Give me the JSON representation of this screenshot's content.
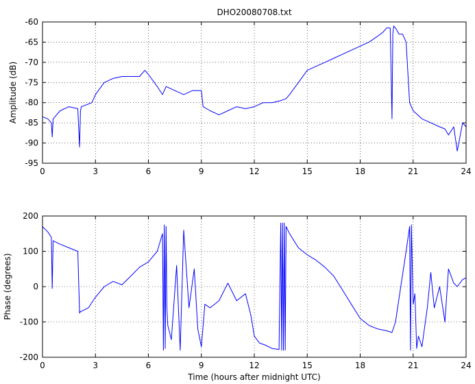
{
  "chart_data": [
    {
      "type": "line",
      "title": "DHO20080708.txt",
      "xlabel": "",
      "ylabel": "Amplitude (dB)",
      "xlim": [
        0,
        24
      ],
      "ylim": [
        -95,
        -60
      ],
      "xticks": [
        "0",
        "3",
        "6",
        "9",
        "12",
        "15",
        "18",
        "21",
        "24"
      ],
      "yticks": [
        "-95",
        "-90",
        "-85",
        "-80",
        "-75",
        "-70",
        "-65",
        "-60"
      ],
      "grid": "dotted",
      "color": "#0000ff",
      "series": [
        {
          "x": [
            0,
            0.3,
            0.5,
            0.55,
            0.6,
            1.0,
            1.5,
            2.0,
            2.1,
            2.15,
            2.2,
            2.5,
            2.8,
            3.0,
            3.5,
            4.0,
            4.5,
            5.0,
            5.5,
            5.8,
            6.0,
            6.5,
            6.8,
            7.0,
            7.5,
            8.0,
            8.5,
            9.0,
            9.1,
            9.5,
            10.0,
            10.5,
            11.0,
            11.5,
            12.0,
            12.5,
            13.0,
            13.5,
            13.8,
            14.0,
            14.5,
            15.0,
            15.5,
            16.0,
            16.5,
            17.0,
            17.5,
            18.0,
            18.5,
            19.0,
            19.3,
            19.5,
            19.7,
            19.8,
            19.85,
            19.9,
            20.0,
            20.2,
            20.4,
            20.6,
            20.8,
            21.0,
            21.5,
            22.0,
            22.5,
            22.8,
            23.0,
            23.3,
            23.5,
            23.8,
            24.0
          ],
          "y": [
            -83.5,
            -84,
            -85,
            -88.5,
            -84,
            -82,
            -81,
            -81.5,
            -91,
            -82,
            -81,
            -80.5,
            -80,
            -78,
            -75,
            -74,
            -73.5,
            -73.5,
            -73.5,
            -72,
            -73,
            -76,
            -78,
            -76,
            -77,
            -78,
            -77,
            -77,
            -81,
            -82,
            -83,
            -82,
            -81,
            -81.5,
            -81,
            -80,
            -80,
            -79.5,
            -79,
            -78,
            -75,
            -72,
            -71,
            -70,
            -69,
            -68,
            -67,
            -66,
            -65,
            -63.5,
            -62.5,
            -61.5,
            -61.5,
            -84,
            -63,
            -61,
            -61.5,
            -63,
            -63,
            -65,
            -80,
            -82,
            -84,
            -85,
            -86,
            -86.5,
            -88,
            -86,
            -92,
            -85,
            -86
          ]
        }
      ]
    },
    {
      "type": "line",
      "title": "",
      "xlabel": "Time (hours after midnight UTC)",
      "ylabel": "Phase (degrees)",
      "xlim": [
        0,
        24
      ],
      "ylim": [
        -200,
        200
      ],
      "xticks": [
        "0",
        "3",
        "6",
        "9",
        "12",
        "15",
        "18",
        "21",
        "24"
      ],
      "yticks": [
        "-200",
        "-100",
        "0",
        "100",
        "200"
      ],
      "grid": "dotted",
      "color": "#0000ff",
      "series": [
        {
          "x": [
            0,
            0.3,
            0.5,
            0.55,
            0.6,
            1.0,
            1.5,
            2.0,
            2.1,
            2.15,
            2.2,
            2.6,
            3.0,
            3.5,
            4.0,
            4.5,
            5.0,
            5.5,
            6.0,
            6.5,
            6.8,
            6.85,
            6.9,
            6.95,
            7.0,
            7.05,
            7.1,
            7.3,
            7.6,
            7.8,
            8.0,
            8.3,
            8.6,
            8.8,
            9.0,
            9.2,
            9.5,
            10.0,
            10.5,
            11.0,
            11.5,
            11.8,
            12.0,
            12.3,
            12.6,
            13.0,
            13.4,
            13.5,
            13.55,
            13.6,
            13.65,
            13.7,
            13.75,
            13.8,
            14.0,
            14.5,
            15.0,
            15.5,
            16.0,
            16.5,
            17.0,
            17.5,
            18.0,
            18.5,
            19.0,
            19.5,
            19.8,
            20.0,
            20.3,
            20.6,
            20.8,
            20.85,
            20.9,
            21.0,
            21.1,
            21.2,
            21.3,
            21.5,
            21.8,
            22.0,
            22.2,
            22.5,
            22.8,
            23.0,
            23.3,
            23.5,
            23.8,
            24.0
          ],
          "y": [
            170,
            155,
            140,
            -5,
            130,
            120,
            110,
            100,
            -75,
            -70,
            -70,
            -60,
            -30,
            0,
            15,
            5,
            30,
            55,
            70,
            100,
            150,
            -180,
            175,
            -175,
            170,
            -60,
            -110,
            -150,
            60,
            -180,
            160,
            -60,
            50,
            -120,
            -170,
            -50,
            -60,
            -40,
            10,
            -40,
            -20,
            -80,
            -140,
            -160,
            -165,
            -175,
            -178,
            180,
            -180,
            180,
            -180,
            180,
            -180,
            170,
            150,
            110,
            90,
            75,
            55,
            30,
            -10,
            -50,
            -90,
            -110,
            -120,
            -125,
            -130,
            -100,
            0,
            100,
            170,
            -180,
            175,
            -50,
            -20,
            -175,
            -140,
            -170,
            -60,
            40,
            -60,
            0,
            -100,
            50,
            10,
            0,
            20,
            25
          ]
        }
      ]
    }
  ]
}
